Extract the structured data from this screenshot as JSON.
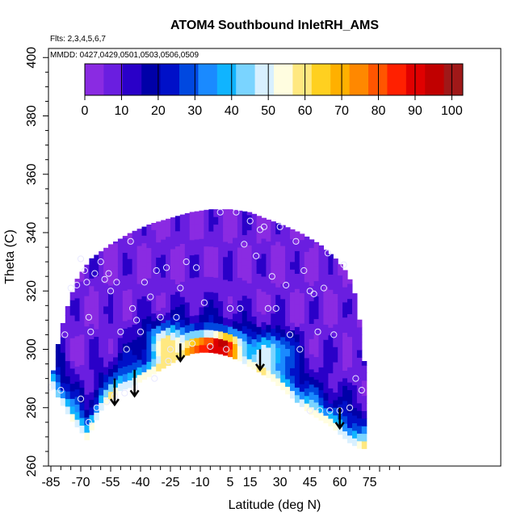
{
  "chart_data": {
    "type": "heatmap",
    "title": "ATOM4 Southbound InletRH_AMS",
    "flights_note": "Flts: 2,3,4,5,6,7",
    "dates_note": "MMDD: 0427,0429,0501,0503,0506,0509",
    "xlabel": "Latitude (deg N)",
    "ylabel": "Theta (C)",
    "xlim": [
      -88,
      82
    ],
    "ylim": [
      260,
      405
    ],
    "x_ticks": [
      -85,
      -70,
      -55,
      -40,
      -25,
      -10,
      5,
      15,
      30,
      45,
      60,
      75
    ],
    "y_ticks": [
      260,
      280,
      300,
      320,
      340,
      360,
      380,
      400
    ],
    "colorbar": {
      "label_ticks": [
        0,
        10,
        20,
        30,
        40,
        50,
        60,
        70,
        80,
        90,
        100
      ],
      "range": [
        0,
        103
      ],
      "colors": [
        "#8a2be2",
        "#6a1ee0",
        "#2a00c8",
        "#0000a8",
        "#0010c8",
        "#0048e0",
        "#1a8aff",
        "#10b4ff",
        "#7ad4ff",
        "#d8f0ff",
        "#fffde0",
        "#ffe880",
        "#ffd020",
        "#ffb000",
        "#ff8800",
        "#ff5500",
        "#ff2000",
        "#e00000",
        "#c00000",
        "#a01818"
      ]
    },
    "field": {
      "lower_boundary": [
        [
          -85,
          288
        ],
        [
          -80,
          282
        ],
        [
          -75,
          276
        ],
        [
          -70,
          272
        ],
        [
          -67,
          269
        ],
        [
          -60,
          279
        ],
        [
          -55,
          283
        ],
        [
          -50,
          286
        ],
        [
          -45,
          287
        ],
        [
          -40,
          289
        ],
        [
          -35,
          291
        ],
        [
          -30,
          293
        ],
        [
          -25,
          295
        ],
        [
          -20,
          297
        ],
        [
          -15,
          298.5
        ],
        [
          -10,
          299
        ],
        [
          -5,
          299
        ],
        [
          0,
          298.5
        ],
        [
          5,
          297.5
        ],
        [
          10,
          296
        ],
        [
          15,
          294
        ],
        [
          20,
          292
        ],
        [
          25,
          290
        ],
        [
          30,
          287
        ],
        [
          35,
          284
        ],
        [
          40,
          281
        ],
        [
          45,
          278
        ],
        [
          50,
          276
        ],
        [
          55,
          274
        ],
        [
          60,
          271
        ],
        [
          65,
          268
        ],
        [
          70,
          266
        ],
        [
          73,
          266
        ]
      ],
      "upper_boundary": [
        [
          -85,
          288
        ],
        [
          -82,
          300
        ],
        [
          -78,
          312
        ],
        [
          -72,
          324
        ],
        [
          -65,
          331
        ],
        [
          -55,
          336
        ],
        [
          -45,
          340
        ],
        [
          -35,
          343
        ],
        [
          -25,
          345
        ],
        [
          -15,
          347
        ],
        [
          -5,
          348
        ],
        [
          5,
          348
        ],
        [
          15,
          347
        ],
        [
          22,
          345
        ],
        [
          30,
          343
        ],
        [
          40,
          340
        ],
        [
          50,
          336
        ],
        [
          58,
          331
        ],
        [
          64,
          326
        ],
        [
          68,
          318
        ],
        [
          71,
          305
        ],
        [
          73,
          290
        ],
        [
          73,
          266
        ]
      ],
      "moist_core": {
        "lat_center": -1,
        "lat_halfwidth": 12,
        "theta_center": 302,
        "theta_halfwidth": 4,
        "max_rh": 96
      }
    },
    "observations": [
      [
        -85,
        287
      ],
      [
        -80,
        286
      ],
      [
        -78,
        305
      ],
      [
        -75,
        321
      ],
      [
        -72,
        322
      ],
      [
        -70,
        331
      ],
      [
        -68,
        327
      ],
      [
        -67,
        323
      ],
      [
        -66,
        311
      ],
      [
        -65,
        306
      ],
      [
        -63,
        326
      ],
      [
        -60,
        330
      ],
      [
        -58,
        324
      ],
      [
        -56,
        326
      ],
      [
        -55,
        320
      ],
      [
        -52,
        323
      ],
      [
        -50,
        306
      ],
      [
        -47,
        300
      ],
      [
        -45,
        337
      ],
      [
        -44,
        314
      ],
      [
        -42,
        310
      ],
      [
        -40,
        306
      ],
      [
        -38,
        323
      ],
      [
        -35,
        318
      ],
      [
        -32,
        327
      ],
      [
        -30,
        311
      ],
      [
        -27,
        328
      ],
      [
        -25,
        300
      ],
      [
        -22,
        311
      ],
      [
        -20,
        321
      ],
      [
        -17,
        330
      ],
      [
        -14,
        302
      ],
      [
        -12,
        328
      ],
      [
        -8,
        316
      ],
      [
        -5,
        301
      ],
      [
        0,
        347
      ],
      [
        3,
        300
      ],
      [
        5,
        314
      ],
      [
        8,
        347
      ],
      [
        10,
        314
      ],
      [
        12,
        336
      ],
      [
        15,
        344
      ],
      [
        18,
        332
      ],
      [
        20,
        341
      ],
      [
        22,
        342
      ],
      [
        24,
        314
      ],
      [
        26,
        325
      ],
      [
        28,
        314
      ],
      [
        30,
        342
      ],
      [
        33,
        322
      ],
      [
        35,
        305
      ],
      [
        38,
        337
      ],
      [
        40,
        300
      ],
      [
        42,
        327
      ],
      [
        45,
        320
      ],
      [
        47,
        319
      ],
      [
        49,
        306
      ],
      [
        52,
        321
      ],
      [
        54,
        333
      ],
      [
        57,
        305
      ],
      [
        60,
        279
      ],
      [
        62,
        329
      ],
      [
        65,
        280
      ],
      [
        68,
        290
      ],
      [
        71,
        286
      ],
      [
        -70,
        283
      ],
      [
        -66,
        275
      ],
      [
        -62,
        280
      ],
      [
        -57,
        282
      ],
      [
        -53,
        284
      ],
      [
        -48,
        285
      ],
      [
        -43,
        287
      ],
      [
        -33,
        290
      ],
      [
        -26,
        296
      ],
      [
        45,
        279
      ],
      [
        50,
        279
      ],
      [
        55,
        279
      ]
    ],
    "arrows": [
      {
        "lat": -53,
        "theta_top": 290,
        "theta_tip": 281
      },
      {
        "lat": -43,
        "theta_top": 293,
        "theta_tip": 284
      },
      {
        "lat": -20,
        "theta_top": 302,
        "theta_tip": 296
      },
      {
        "lat": 20,
        "theta_top": 300,
        "theta_tip": 293
      },
      {
        "lat": 60,
        "theta_top": 280,
        "theta_tip": 273
      }
    ]
  }
}
